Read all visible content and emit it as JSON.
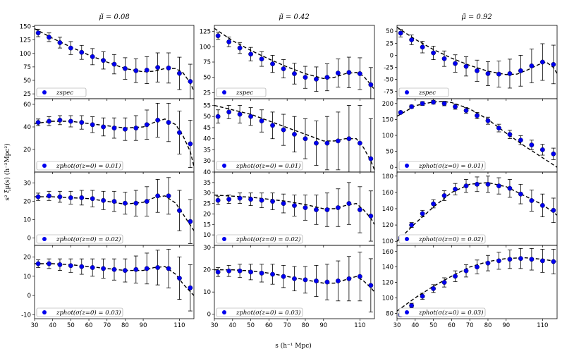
{
  "figure": {
    "xlabel": "s (h⁻¹ Mpc)",
    "ylabel": "s² ξμ(s) (h⁻²Mpc²)",
    "columns": [
      "μ̃ = 0.08",
      "μ̃ = 0.42",
      "μ̃ = 0.92"
    ],
    "xticks": [
      30,
      40,
      50,
      60,
      70,
      80,
      90,
      110
    ],
    "xlim": [
      30,
      118
    ],
    "colors": {
      "points": "#0000ee",
      "errorbar": "#000000",
      "model": "#000000"
    }
  },
  "chart_data": [
    {
      "type": "line",
      "col": 0,
      "row": 0,
      "legend": "zspec",
      "ylim": [
        16,
        152
      ],
      "yticks": [
        25,
        50,
        75,
        100,
        125,
        150
      ],
      "x": [
        32,
        38,
        44,
        50,
        56,
        62,
        68,
        74,
        80,
        86,
        92,
        98,
        104,
        110,
        116
      ],
      "y": [
        138,
        130,
        120,
        110,
        102,
        94,
        87,
        80,
        72,
        68,
        69,
        74,
        73,
        63,
        48
      ],
      "err": [
        7,
        8,
        10,
        12,
        13,
        15,
        16,
        18,
        20,
        22,
        25,
        27,
        28,
        30,
        32
      ],
      "model_x": [
        30,
        40,
        50,
        60,
        70,
        80,
        90,
        96,
        102,
        108,
        112,
        116,
        118
      ],
      "model_y": [
        146,
        128,
        112,
        97,
        84,
        72,
        66,
        67,
        72,
        72,
        64,
        45,
        30
      ]
    },
    {
      "type": "line",
      "col": 1,
      "row": 0,
      "legend": "zspec",
      "ylim": [
        15,
        135
      ],
      "yticks": [
        25,
        50,
        75,
        100,
        125
      ],
      "x": [
        32,
        38,
        44,
        50,
        56,
        62,
        68,
        74,
        80,
        86,
        92,
        98,
        104,
        110,
        116
      ],
      "y": [
        118,
        108,
        98,
        88,
        80,
        72,
        64,
        56,
        50,
        47,
        50,
        57,
        58,
        56,
        38
      ],
      "err": [
        6,
        8,
        9,
        11,
        12,
        14,
        15,
        17,
        18,
        20,
        22,
        23,
        25,
        26,
        28
      ],
      "model_x": [
        30,
        40,
        50,
        60,
        70,
        80,
        90,
        96,
        102,
        108,
        112,
        116,
        118
      ],
      "model_y": [
        130,
        110,
        94,
        80,
        67,
        56,
        48,
        50,
        56,
        58,
        52,
        38,
        30
      ]
    },
    {
      "type": "line",
      "col": 2,
      "row": 0,
      "legend": "zspec",
      "ylim": [
        -90,
        62
      ],
      "yticks": [
        -75,
        -50,
        -25,
        0,
        25,
        50
      ],
      "x": [
        32,
        38,
        44,
        50,
        56,
        62,
        68,
        74,
        80,
        86,
        92,
        98,
        104,
        110,
        116
      ],
      "y": [
        46,
        32,
        17,
        5,
        -7,
        -17,
        -23,
        -32,
        -38,
        -39,
        -38,
        -32,
        -22,
        -14,
        -19
      ],
      "err": [
        8,
        10,
        12,
        14,
        16,
        18,
        20,
        22,
        25,
        27,
        30,
        32,
        35,
        38,
        40
      ],
      "model_x": [
        30,
        40,
        50,
        60,
        70,
        80,
        90,
        96,
        102,
        108,
        112,
        116,
        118
      ],
      "model_y": [
        58,
        33,
        12,
        -6,
        -21,
        -33,
        -40,
        -39,
        -30,
        -19,
        -14,
        -25,
        -38
      ]
    },
    {
      "type": "line",
      "col": 0,
      "row": 1,
      "legend": "zphot(σ(z=0) = 0.01)",
      "ylim": [
        0,
        65
      ],
      "yticks": [
        20,
        40,
        60
      ],
      "x": [
        32,
        38,
        44,
        50,
        56,
        62,
        68,
        74,
        80,
        86,
        92,
        98,
        104,
        110,
        116
      ],
      "y": [
        44,
        45,
        46,
        45,
        44,
        42,
        40,
        39,
        38,
        39,
        42,
        46,
        44,
        35,
        25
      ],
      "err": [
        3,
        4,
        4,
        5,
        6,
        7,
        8,
        9,
        10,
        11,
        13,
        15,
        17,
        19,
        21
      ],
      "model_x": [
        30,
        40,
        50,
        60,
        70,
        80,
        90,
        96,
        102,
        108,
        112,
        116,
        118
      ],
      "model_y": [
        43,
        45,
        45,
        43,
        41,
        39,
        40,
        44,
        47,
        42,
        32,
        18,
        5
      ]
    },
    {
      "type": "line",
      "col": 1,
      "row": 1,
      "legend": "zphot(σ(z=0) = 0.01)",
      "ylim": [
        25,
        58
      ],
      "yticks": [
        30,
        35,
        40,
        45,
        50,
        55
      ],
      "x": [
        32,
        38,
        44,
        50,
        56,
        62,
        68,
        74,
        80,
        86,
        92,
        98,
        104,
        110,
        116
      ],
      "y": [
        50,
        52,
        51,
        50,
        48,
        46,
        44,
        42,
        40,
        38,
        38,
        39,
        40,
        38,
        31
      ],
      "err": [
        3,
        3,
        4,
        4,
        5,
        6,
        7,
        8,
        9,
        10,
        12,
        13,
        15,
        17,
        18
      ],
      "model_x": [
        30,
        40,
        50,
        60,
        70,
        80,
        90,
        96,
        102,
        108,
        112,
        116,
        118
      ],
      "model_y": [
        55,
        53,
        51,
        48,
        45,
        42,
        39,
        39,
        40,
        40,
        36,
        30,
        26
      ]
    },
    {
      "type": "line",
      "col": 2,
      "row": 1,
      "legend": "zphot(σ(z=0) = 0.01)",
      "ylim": [
        -15,
        215
      ],
      "yticks": [
        0,
        50,
        100,
        150,
        200
      ],
      "x": [
        32,
        38,
        44,
        50,
        56,
        62,
        68,
        74,
        80,
        86,
        92,
        98,
        104,
        110,
        116
      ],
      "y": [
        172,
        190,
        200,
        204,
        200,
        190,
        178,
        162,
        146,
        123,
        103,
        85,
        70,
        55,
        42
      ],
      "err": [
        4,
        5,
        6,
        6,
        7,
        8,
        9,
        10,
        11,
        12,
        13,
        14,
        15,
        17,
        18
      ],
      "model_x": [
        30,
        40,
        50,
        56,
        60,
        70,
        80,
        90,
        100,
        110,
        118
      ],
      "model_y": [
        160,
        193,
        205,
        206,
        203,
        183,
        150,
        107,
        67,
        30,
        0
      ]
    },
    {
      "type": "line",
      "col": 0,
      "row": 2,
      "legend": "zphot(σ(z=0) = 0.02)",
      "ylim": [
        -4,
        36
      ],
      "yticks": [
        0,
        10,
        20,
        30
      ],
      "x": [
        32,
        38,
        44,
        50,
        56,
        62,
        68,
        74,
        80,
        86,
        92,
        98,
        104,
        110,
        116
      ],
      "y": [
        22.5,
        23,
        22.5,
        22,
        22,
        21.5,
        20.5,
        20,
        19,
        19,
        20,
        23,
        23,
        15,
        9
      ],
      "err": [
        2,
        2.5,
        3,
        3.5,
        4,
        4.5,
        5,
        5.5,
        6,
        7,
        8,
        9,
        10,
        11,
        12
      ],
      "model_x": [
        30,
        40,
        50,
        60,
        70,
        80,
        90,
        96,
        102,
        108,
        112,
        116,
        118
      ],
      "model_y": [
        22.5,
        22.5,
        22,
        21.5,
        20,
        18.5,
        19.5,
        22,
        23,
        19,
        13,
        7,
        4
      ]
    },
    {
      "type": "line",
      "col": 1,
      "row": 2,
      "legend": "zphot(σ(z=0) = 0.02)",
      "ylim": [
        5,
        40
      ],
      "yticks": [
        10,
        15,
        20,
        25,
        30,
        35,
        40
      ],
      "x": [
        32,
        38,
        44,
        50,
        56,
        62,
        68,
        74,
        80,
        86,
        92,
        98,
        104,
        110,
        116
      ],
      "y": [
        26.5,
        27,
        27.5,
        27,
        26.5,
        26,
        25,
        24,
        23,
        22,
        22,
        23,
        25,
        22,
        19
      ],
      "err": [
        2,
        2,
        2.5,
        3,
        3.5,
        4,
        4.5,
        5,
        6,
        7,
        8,
        9,
        10,
        11,
        12
      ],
      "model_x": [
        30,
        40,
        50,
        60,
        70,
        80,
        90,
        96,
        102,
        108,
        112,
        116,
        118
      ],
      "model_y": [
        29,
        28.5,
        28,
        27,
        26,
        24.5,
        22.5,
        22.5,
        24,
        25,
        22,
        18,
        15
      ]
    },
    {
      "type": "line",
      "col": 2,
      "row": 2,
      "legend": "zphot(σ(z=0) = 0.02)",
      "ylim": [
        95,
        185
      ],
      "yticks": [
        100,
        120,
        140,
        160,
        180
      ],
      "x": [
        32,
        38,
        44,
        50,
        56,
        62,
        68,
        74,
        80,
        86,
        92,
        98,
        104,
        110,
        116
      ],
      "y": [
        104,
        120,
        134,
        146,
        156,
        164,
        168,
        170,
        170,
        168,
        165,
        158,
        150,
        144,
        138
      ],
      "err": [
        2,
        3,
        4,
        5,
        6,
        7,
        8,
        9,
        10,
        10,
        11,
        12,
        13,
        14,
        15
      ],
      "model_x": [
        30,
        40,
        50,
        60,
        70,
        80,
        90,
        100,
        110,
        118
      ],
      "model_y": [
        100,
        122,
        142,
        160,
        170,
        172,
        167,
        156,
        145,
        132
      ]
    },
    {
      "type": "line",
      "col": 0,
      "row": 3,
      "legend": "zphot(σ(z=0) = 0.03)",
      "ylim": [
        -12,
        26
      ],
      "yticks": [
        -10,
        0,
        10,
        20
      ],
      "x": [
        32,
        38,
        44,
        50,
        56,
        62,
        68,
        74,
        80,
        86,
        92,
        98,
        104,
        110,
        116
      ],
      "y": [
        16.5,
        16.5,
        16,
        15.5,
        15,
        14.5,
        14,
        13.5,
        13,
        13.5,
        14,
        14.5,
        14,
        9,
        4
      ],
      "err": [
        2,
        2.5,
        3,
        3.5,
        4,
        4.5,
        5,
        5.5,
        6,
        7,
        8,
        9,
        10,
        11,
        12
      ],
      "model_x": [
        30,
        40,
        50,
        60,
        70,
        80,
        90,
        96,
        102,
        108,
        112,
        116,
        118
      ],
      "model_y": [
        16.5,
        16.5,
        16,
        15,
        14,
        13,
        13,
        14.5,
        15,
        11,
        6,
        2,
        0
      ]
    },
    {
      "type": "line",
      "col": 1,
      "row": 3,
      "legend": "zphot(σ(z=0) = 0.03)",
      "ylim": [
        -2,
        31
      ],
      "yticks": [
        0,
        10,
        20,
        30
      ],
      "x": [
        32,
        38,
        44,
        50,
        56,
        62,
        68,
        74,
        80,
        86,
        92,
        98,
        104,
        110,
        116
      ],
      "y": [
        19,
        19.5,
        19.5,
        19,
        18.5,
        18,
        17,
        16,
        15.5,
        15,
        14.5,
        15,
        16,
        17,
        13
      ],
      "err": [
        2,
        2.5,
        3,
        3.5,
        4,
        4.5,
        5,
        5.5,
        6,
        7,
        8,
        9,
        10,
        11,
        12
      ],
      "model_x": [
        30,
        40,
        50,
        60,
        70,
        80,
        90,
        96,
        102,
        108,
        112,
        116,
        118
      ],
      "model_y": [
        20,
        20,
        19.5,
        18.5,
        17,
        15.5,
        14,
        14,
        15.5,
        17,
        15,
        12,
        10
      ]
    },
    {
      "type": "line",
      "col": 2,
      "row": 3,
      "legend": "zphot(σ(z=0) = 0.03)",
      "ylim": [
        73,
        168
      ],
      "yticks": [
        80,
        100,
        120,
        140,
        160
      ],
      "x": [
        32,
        38,
        44,
        50,
        56,
        62,
        68,
        74,
        80,
        86,
        92,
        98,
        104,
        110,
        116
      ],
      "y": [
        78,
        90,
        102,
        112,
        120,
        128,
        135,
        140,
        145,
        148,
        150,
        151,
        150,
        148,
        147
      ],
      "err": [
        2,
        3,
        4,
        5,
        6,
        7,
        8,
        9,
        10,
        11,
        12,
        13,
        14,
        15,
        16
      ],
      "model_x": [
        30,
        40,
        50,
        60,
        70,
        80,
        90,
        100,
        110,
        118
      ],
      "model_y": [
        83,
        100,
        115,
        128,
        140,
        147,
        151,
        152,
        150,
        147
      ]
    }
  ]
}
